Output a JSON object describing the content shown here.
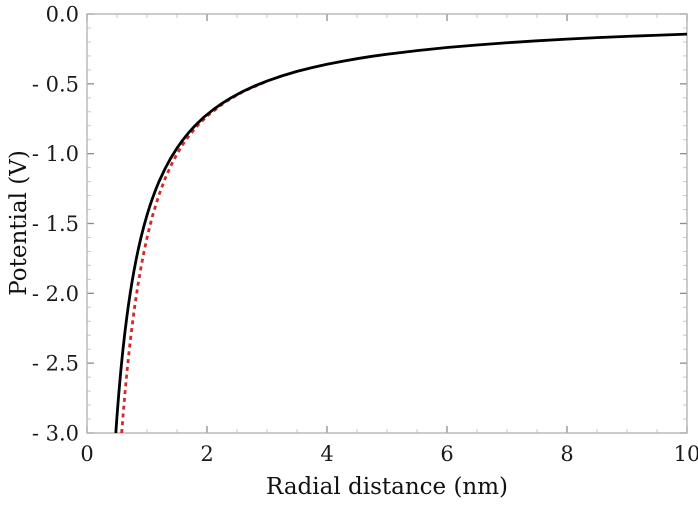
{
  "chart_data": {
    "type": "line",
    "title": "",
    "xlabel": "Radial distance (nm)",
    "ylabel": "Potential (V)",
    "xlim": [
      0,
      10
    ],
    "ylim": [
      -3.0,
      0.0
    ],
    "grid": false,
    "legend": null,
    "frame": true,
    "tick_direction": "in",
    "x_ticks": [
      0,
      2,
      4,
      6,
      8,
      10
    ],
    "x_tick_labels": [
      "0",
      "2",
      "4",
      "6",
      "8",
      "10"
    ],
    "x_minor_step": 0.5,
    "y_ticks": [
      0.0,
      -0.5,
      -1.0,
      -1.5,
      -2.0,
      -2.5,
      -3.0
    ],
    "y_tick_labels": [
      "0.0",
      "- 0.5",
      "- 1.0",
      "- 1.5",
      "- 2.0",
      "- 2.5",
      "- 3.0"
    ],
    "y_minor_step": 0.1,
    "colors": {
      "spine": "#b0b0b0",
      "major_tick": "#8c8c8c",
      "minor_tick": "#c9c9c9",
      "tick_label": "#1a1a1a",
      "axis_label": "#111111"
    },
    "series": [
      {
        "name": "dashed-red-curve",
        "style": "dashed",
        "color": "#d22a2a",
        "width": 2.8,
        "points": [
          [
            0.578,
            -3.0
          ],
          [
            0.59,
            -2.934
          ],
          [
            0.61,
            -2.828
          ],
          [
            0.63,
            -2.729
          ],
          [
            0.65,
            -2.635
          ],
          [
            0.67,
            -2.547
          ],
          [
            0.7,
            -2.424
          ],
          [
            0.73,
            -2.31
          ],
          [
            0.75,
            -2.24
          ],
          [
            0.78,
            -2.141
          ],
          [
            0.8,
            -2.08
          ],
          [
            0.85,
            -1.938
          ],
          [
            0.9,
            -1.814
          ],
          [
            0.95,
            -1.702
          ],
          [
            1.0,
            -1.603
          ],
          [
            1.05,
            -1.514
          ],
          [
            1.1,
            -1.433
          ],
          [
            1.2,
            -1.295
          ],
          [
            1.3,
            -1.18
          ],
          [
            1.4,
            -1.084
          ],
          [
            1.5,
            -1.002
          ],
          [
            1.6,
            -0.932
          ],
          [
            1.7,
            -0.872
          ],
          [
            1.85,
            -0.795
          ],
          [
            2.0,
            -0.731
          ],
          [
            2.3,
            -0.631
          ],
          [
            2.6,
            -0.556
          ],
          [
            3.0,
            -0.481
          ]
        ]
      },
      {
        "name": "solid-black-curve",
        "style": "solid",
        "color": "#000000",
        "width": 2.8,
        "points": [
          [
            0.48,
            -3.0
          ],
          [
            0.49,
            -2.939
          ],
          [
            0.5,
            -2.88
          ],
          [
            0.52,
            -2.769
          ],
          [
            0.54,
            -2.667
          ],
          [
            0.56,
            -2.571
          ],
          [
            0.58,
            -2.483
          ],
          [
            0.6,
            -2.4
          ],
          [
            0.63,
            -2.286
          ],
          [
            0.66,
            -2.182
          ],
          [
            0.69,
            -2.087
          ],
          [
            0.72,
            -2.0
          ],
          [
            0.75,
            -1.92
          ],
          [
            0.78,
            -1.846
          ],
          [
            0.82,
            -1.756
          ],
          [
            0.86,
            -1.674
          ],
          [
            0.9,
            -1.6
          ],
          [
            0.95,
            -1.516
          ],
          [
            1.0,
            -1.44
          ],
          [
            1.05,
            -1.371
          ],
          [
            1.1,
            -1.309
          ],
          [
            1.15,
            -1.252
          ],
          [
            1.2,
            -1.2
          ],
          [
            1.3,
            -1.108
          ],
          [
            1.4,
            -1.029
          ],
          [
            1.5,
            -0.96
          ],
          [
            1.6,
            -0.9
          ],
          [
            1.7,
            -0.847
          ],
          [
            1.8,
            -0.8
          ],
          [
            1.95,
            -0.738
          ],
          [
            2.1,
            -0.686
          ],
          [
            2.25,
            -0.64
          ],
          [
            2.4,
            -0.6
          ],
          [
            2.6,
            -0.554
          ],
          [
            2.8,
            -0.514
          ],
          [
            3.0,
            -0.48
          ],
          [
            3.25,
            -0.443
          ],
          [
            3.5,
            -0.411
          ],
          [
            3.75,
            -0.384
          ],
          [
            4.0,
            -0.36
          ],
          [
            4.25,
            -0.339
          ],
          [
            4.5,
            -0.32
          ],
          [
            4.75,
            -0.303
          ],
          [
            5.0,
            -0.288
          ],
          [
            5.5,
            -0.262
          ],
          [
            6.0,
            -0.24
          ],
          [
            6.5,
            -0.222
          ],
          [
            7.0,
            -0.206
          ],
          [
            7.5,
            -0.192
          ],
          [
            8.0,
            -0.18
          ],
          [
            8.5,
            -0.169
          ],
          [
            9.0,
            -0.16
          ],
          [
            9.5,
            -0.152
          ],
          [
            10.0,
            -0.144
          ]
        ]
      }
    ]
  }
}
